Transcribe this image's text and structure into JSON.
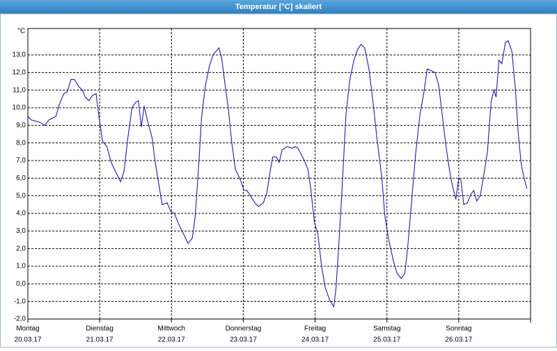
{
  "chart_data": {
    "type": "line",
    "title": "Temperatur [°C] skaliert",
    "y_label": "°C",
    "x": [
      0,
      0.05,
      0.15,
      0.24,
      0.29,
      0.39,
      0.44,
      0.5,
      0.55,
      0.6,
      0.65,
      0.71,
      0.76,
      0.8,
      0.85,
      0.9,
      0.95,
      0.99,
      1.04,
      1.1,
      1.16,
      1.23,
      1.29,
      1.34,
      1.39,
      1.45,
      1.5,
      1.54,
      1.58,
      1.62,
      1.67,
      1.73,
      1.77,
      1.83,
      1.87,
      1.94,
      1.99,
      2.04,
      2.1,
      2.16,
      2.23,
      2.29,
      2.33,
      2.38,
      2.42,
      2.47,
      2.53,
      2.58,
      2.66,
      2.7,
      2.74,
      2.79,
      2.84,
      2.89,
      2.96,
      3.01,
      3.05,
      3.1,
      3.16,
      3.21,
      3.28,
      3.33,
      3.37,
      3.41,
      3.46,
      3.5,
      3.54,
      3.61,
      3.68,
      3.72,
      3.76,
      3.8,
      3.85,
      3.9,
      3.94,
      3.99,
      4.04,
      4.09,
      4.14,
      4.2,
      4.26,
      4.29,
      4.33,
      4.37,
      4.43,
      4.48,
      4.54,
      4.59,
      4.64,
      4.69,
      4.75,
      4.81,
      4.86,
      4.93,
      4.97,
      5.02,
      5.09,
      5.14,
      5.2,
      5.25,
      5.29,
      5.34,
      5.4,
      5.46,
      5.52,
      5.56,
      5.62,
      5.67,
      5.72,
      5.77,
      5.82,
      5.87,
      5.91,
      5.96,
      6.0,
      6.03,
      6.07,
      6.12,
      6.17,
      6.21,
      6.25,
      6.3,
      6.35,
      6.4,
      6.45,
      6.49,
      6.52,
      6.56,
      6.6,
      6.65,
      6.69,
      6.74,
      6.79,
      6.83,
      6.87,
      6.91,
      6.95
    ],
    "series": [
      {
        "name": "Temperatur",
        "color": "#1c1ca8",
        "values": [
          9.5,
          9.3,
          9.2,
          9.0,
          9.3,
          9.5,
          10.2,
          10.8,
          10.9,
          11.6,
          11.6,
          11.2,
          11.0,
          10.6,
          10.4,
          10.7,
          10.8,
          9.5,
          8.1,
          7.8,
          6.9,
          6.3,
          5.8,
          6.4,
          8.2,
          10.0,
          10.3,
          10.4,
          8.9,
          10.1,
          9.2,
          8.3,
          7.0,
          5.5,
          4.5,
          4.6,
          4.1,
          4.0,
          3.4,
          2.9,
          2.3,
          2.6,
          3.8,
          6.8,
          9.5,
          11.2,
          12.4,
          13.0,
          13.4,
          12.8,
          11.5,
          10.0,
          8.0,
          6.5,
          5.9,
          5.3,
          5.3,
          5.0,
          4.6,
          4.4,
          4.6,
          5.2,
          6.3,
          7.2,
          7.2,
          6.9,
          7.6,
          7.8,
          7.7,
          7.8,
          7.7,
          7.4,
          7.0,
          6.5,
          5.4,
          3.5,
          2.8,
          1.0,
          -0.2,
          -0.9,
          -1.3,
          -0.3,
          2.2,
          5.0,
          9.6,
          11.5,
          12.7,
          13.3,
          13.6,
          13.4,
          12.2,
          10.2,
          8.3,
          6.0,
          3.9,
          2.6,
          1.3,
          0.6,
          0.3,
          0.6,
          2.1,
          4.5,
          7.4,
          9.6,
          11.0,
          12.2,
          12.1,
          12.0,
          11.3,
          9.6,
          7.9,
          6.5,
          5.6,
          4.8,
          6.0,
          5.9,
          4.5,
          4.6,
          5.1,
          5.3,
          4.7,
          5.0,
          6.2,
          7.5,
          10.3,
          11.0,
          10.6,
          12.7,
          12.5,
          13.7,
          13.8,
          13.2,
          11.0,
          8.5,
          6.8,
          6.0,
          5.4
        ]
      }
    ],
    "xlim": [
      0,
      7
    ],
    "xticks": [
      0,
      1,
      2,
      3,
      4,
      5,
      6,
      7
    ],
    "day_labels": [
      "Montag",
      "Dienstag",
      "Mittwoch",
      "Donnerstag",
      "Freitag",
      "Samstag",
      "Sonntag"
    ],
    "date_labels": [
      "20.03.17",
      "21.03.17",
      "22.03.17",
      "23.03.17",
      "24.03.17",
      "25.03.17",
      "26.03.17"
    ],
    "ylim": [
      -2,
      14.5
    ],
    "yticks": [
      {
        "value": -2,
        "label": "-2,0"
      },
      {
        "value": -1,
        "label": "-1,0"
      },
      {
        "value": 0,
        "label": "0,0"
      },
      {
        "value": 1,
        "label": "1,0"
      },
      {
        "value": 2,
        "label": "2,0"
      },
      {
        "value": 3,
        "label": "3,0"
      },
      {
        "value": 4,
        "label": "4,0"
      },
      {
        "value": 5,
        "label": "5,0"
      },
      {
        "value": 6,
        "label": "6,0"
      },
      {
        "value": 7,
        "label": "7,0"
      },
      {
        "value": 8,
        "label": "8,0"
      },
      {
        "value": 9,
        "label": "9,0"
      },
      {
        "value": 10,
        "label": "10,0"
      },
      {
        "value": 11,
        "label": "11,0"
      },
      {
        "value": 12,
        "label": "12,0"
      },
      {
        "value": 13,
        "label": "13,0"
      }
    ],
    "grid": true
  }
}
